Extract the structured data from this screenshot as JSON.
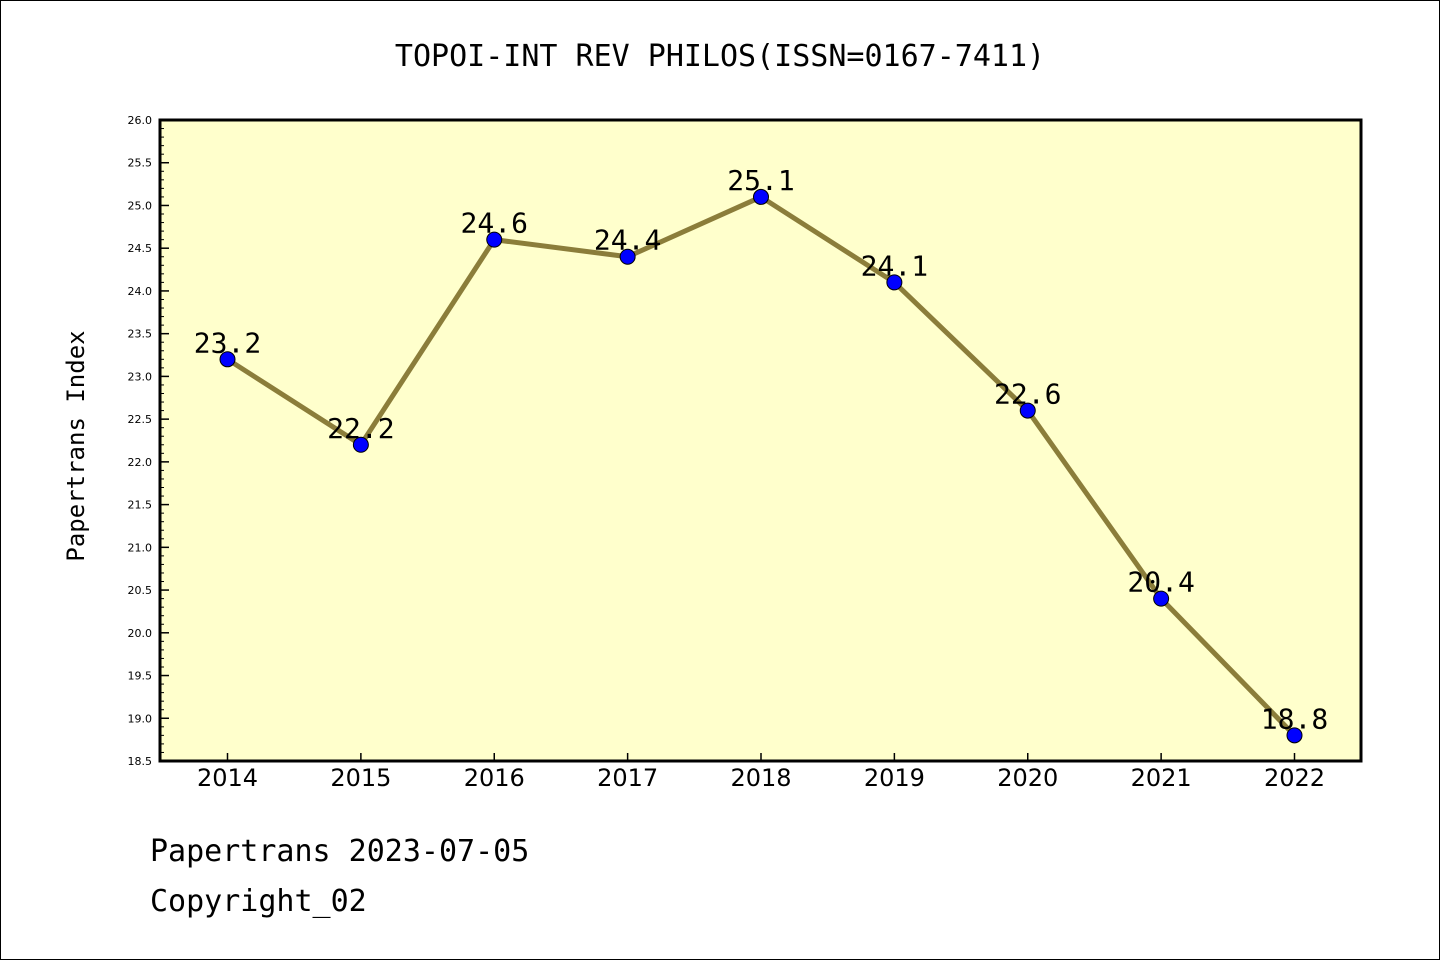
{
  "chart_data": {
    "type": "line",
    "title": "TOPOI-INT REV PHILOS(ISSN=0167-7411)",
    "ylabel": "Papertrans Index",
    "xlabel": "",
    "x": [
      "2014",
      "2015",
      "2016",
      "2017",
      "2018",
      "2019",
      "2020",
      "2021",
      "2022"
    ],
    "values": [
      23.2,
      22.2,
      24.6,
      24.4,
      25.1,
      24.1,
      22.6,
      20.4,
      18.8
    ],
    "data_labels": [
      "23.2",
      "22.2",
      "24.6",
      "24.4",
      "25.1",
      "24.1",
      "22.6",
      "20.4",
      "18.8"
    ],
    "ylim": [
      18.5,
      26.0
    ],
    "y_ticks": [
      "18.5",
      "19.0",
      "19.5",
      "20.0",
      "20.5",
      "21.0",
      "21.5",
      "22.0",
      "22.5",
      "23.0",
      "23.5",
      "24.0",
      "24.5",
      "25.0",
      "25.5",
      "26.0"
    ],
    "grid": false,
    "colors": {
      "plot_background": "#ffffcc",
      "line": "#8b7d3a",
      "marker": "#0000ff"
    }
  },
  "footer": {
    "line1": "Papertrans 2023-07-05",
    "line2": "Copyright_02"
  }
}
